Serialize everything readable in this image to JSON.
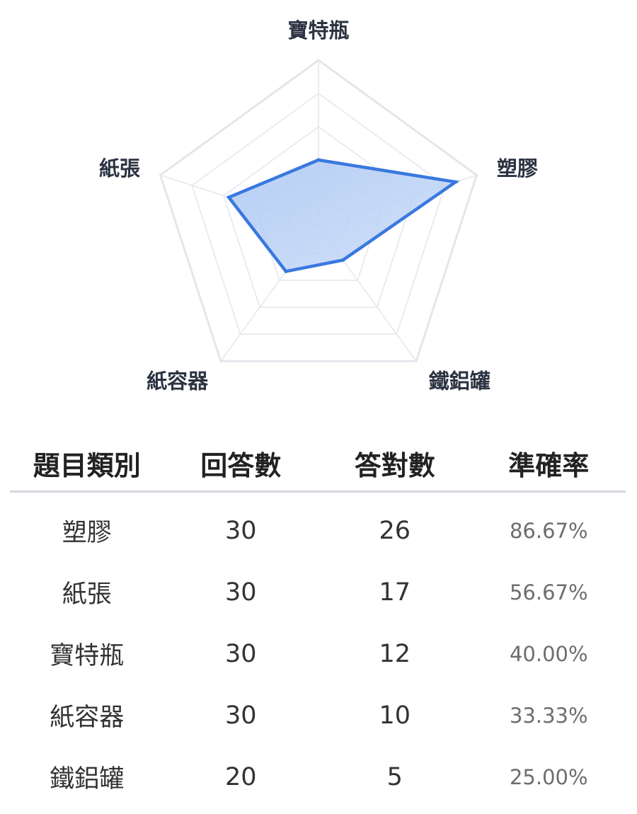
{
  "chart_data": {
    "type": "radar",
    "axes": [
      "寶特瓶",
      "塑膠",
      "鐵鋁罐",
      "紙容器",
      "紙張"
    ],
    "values": [
      40.0,
      86.67,
      25.0,
      33.33,
      56.67
    ],
    "range": [
      0,
      100
    ],
    "grid_levels": 5,
    "fill_color": "#bcd3f5",
    "stroke_color": "#3a78df",
    "grid_color": "#e4e6eb"
  },
  "table": {
    "headers": [
      "題目類別",
      "回答數",
      "答對數",
      "準確率"
    ],
    "rows": [
      [
        "塑膠",
        "30",
        "26",
        "86.67%"
      ],
      [
        "紙張",
        "30",
        "17",
        "56.67%"
      ],
      [
        "寶特瓶",
        "30",
        "12",
        "40.00%"
      ],
      [
        "紙容器",
        "30",
        "10",
        "33.33%"
      ],
      [
        "鐵鋁罐",
        "20",
        "5",
        "25.00%"
      ]
    ]
  }
}
